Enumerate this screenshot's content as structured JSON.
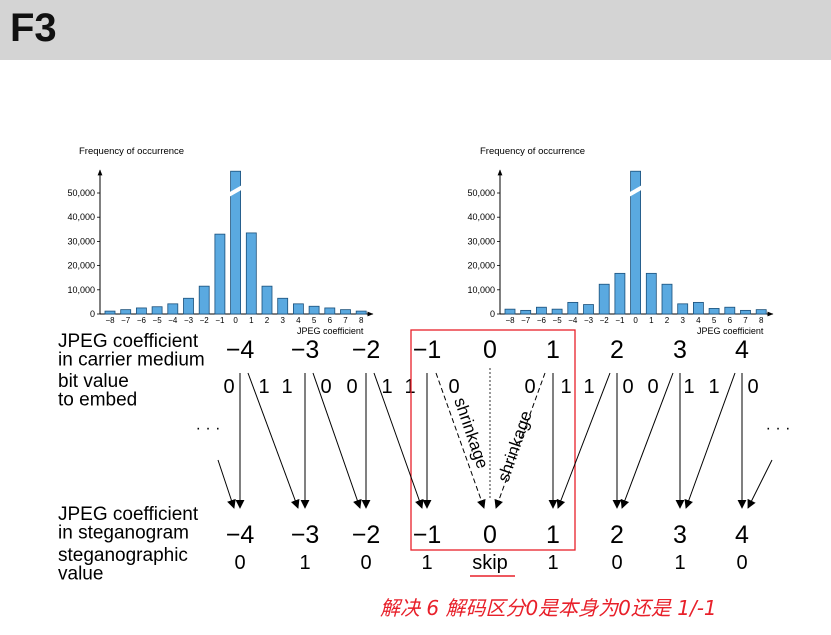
{
  "slide": {
    "title": "F3"
  },
  "chart_data": [
    {
      "type": "bar",
      "ylabel": "Frequency of occurrence",
      "xlabel": "JPEG coefficient",
      "categories": [
        "−8",
        "−7",
        "−6",
        "−5",
        "−4",
        "−3",
        "−2",
        "−1",
        "0",
        "1",
        "2",
        "3",
        "4",
        "5",
        "6",
        "7",
        "8"
      ],
      "yticks": [
        "0",
        "10,000",
        "20,000",
        "30,000",
        "40,000",
        "50,000"
      ],
      "ylim": [
        0,
        60000
      ],
      "bar_color": "#5aa9e0",
      "values": [
        1200,
        1800,
        2500,
        3000,
        4200,
        6500,
        11500,
        33000,
        59000,
        33500,
        11500,
        6500,
        4200,
        3200,
        2500,
        1800,
        1200
      ],
      "broken_axis_category": "0"
    },
    {
      "type": "bar",
      "ylabel": "Frequency of occurrence",
      "xlabel": "JPEG coefficient",
      "categories": [
        "−8",
        "−7",
        "−6",
        "−5",
        "−4",
        "−3",
        "−2",
        "−1",
        "0",
        "1",
        "2",
        "3",
        "4",
        "5",
        "6",
        "7",
        "8"
      ],
      "yticks": [
        "0",
        "10,000",
        "20,000",
        "30,000",
        "40,000",
        "50,000"
      ],
      "ylim": [
        0,
        60000
      ],
      "bar_color": "#5aa9e0",
      "values": [
        2000,
        1500,
        2800,
        2000,
        4800,
        3900,
        12300,
        16800,
        59000,
        16800,
        12300,
        4200,
        4800,
        2300,
        2800,
        1500,
        1800
      ],
      "broken_axis_category": "0"
    }
  ],
  "diagram": {
    "carrier_label": [
      "JPEG coefficient",
      "in carrier medium"
    ],
    "bit_label": [
      "bit value",
      "to embed"
    ],
    "stego_label": [
      "JPEG coefficient",
      "in steganogram"
    ],
    "stegval_label": [
      "steganographic",
      "value"
    ],
    "ellipsis": "· · ·",
    "carrier_values": [
      "−4",
      "−3",
      "−2",
      "−1",
      "0",
      "1",
      "2",
      "3",
      "4"
    ],
    "bits": [
      "0",
      "1",
      "1",
      "0",
      "0",
      "1",
      "1",
      "0",
      "0",
      "1",
      "1",
      "0",
      "0",
      "1",
      "1",
      "0"
    ],
    "stego_values": [
      "−4",
      "−3",
      "−2",
      "−1",
      "0",
      "1",
      "2",
      "3",
      "4"
    ],
    "stego_bits": [
      "0",
      "1",
      "0",
      "1",
      "skip",
      "1",
      "0",
      "1",
      "0"
    ],
    "shrinkage": "shrinkage",
    "annotation": "解决 6 解码区分0是本身为0还是 1/-1",
    "colors": {
      "annotation": "#e8202a",
      "box": "#e8202a",
      "bars": "#5aa9e0"
    }
  }
}
